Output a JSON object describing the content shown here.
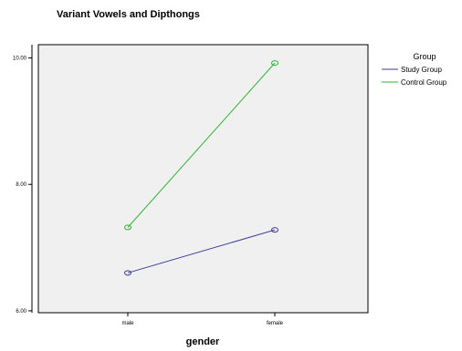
{
  "chart_data": {
    "type": "line",
    "title": "Variant Vowels and Dipthongs",
    "xlabel": "gender",
    "ylabel": "",
    "categories": [
      "male",
      "female"
    ],
    "ylim": [
      5.97,
      10.21
    ],
    "yticks": [
      6.0,
      8.0,
      10.0
    ],
    "ytick_labels": [
      "6.00",
      "8.00",
      "10.00"
    ],
    "legend_title": "Group",
    "legend_position": "right",
    "series": [
      {
        "name": "Study Group",
        "values": [
          6.6,
          7.28
        ],
        "color": "#3c3c9a"
      },
      {
        "name": "Control Group",
        "values": [
          7.32,
          9.92
        ],
        "color": "#2eb82e"
      }
    ],
    "plot_background": "#f0f0f0",
    "grid": false
  }
}
